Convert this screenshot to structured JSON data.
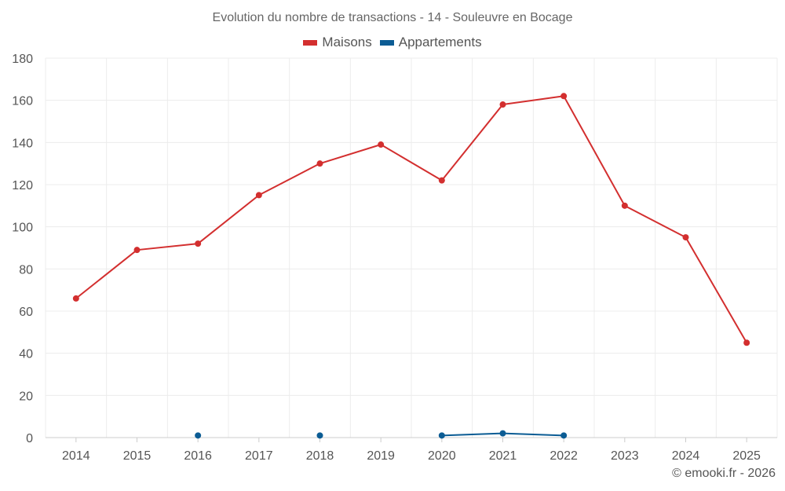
{
  "chart_data": {
    "type": "line",
    "title": "Evolution du nombre de transactions - 14 - Souleuvre en Bocage",
    "xlabel": "",
    "ylabel": "",
    "categories": [
      "2014",
      "2015",
      "2016",
      "2017",
      "2018",
      "2019",
      "2020",
      "2021",
      "2022",
      "2023",
      "2024",
      "2025"
    ],
    "ylim": [
      0,
      180
    ],
    "yticks": [
      0,
      20,
      40,
      60,
      80,
      100,
      120,
      140,
      160,
      180
    ],
    "grid": true,
    "legend_position": "top",
    "series": [
      {
        "name": "Maisons",
        "color": "#d32f2f",
        "values": [
          66,
          89,
          92,
          115,
          130,
          139,
          122,
          158,
          162,
          110,
          95,
          45
        ]
      },
      {
        "name": "Appartements",
        "color": "#0b5c94",
        "values": [
          null,
          null,
          1,
          null,
          1,
          null,
          1,
          2,
          1,
          null,
          null,
          null
        ]
      }
    ]
  },
  "credit": "© emooki.fr - 2026"
}
